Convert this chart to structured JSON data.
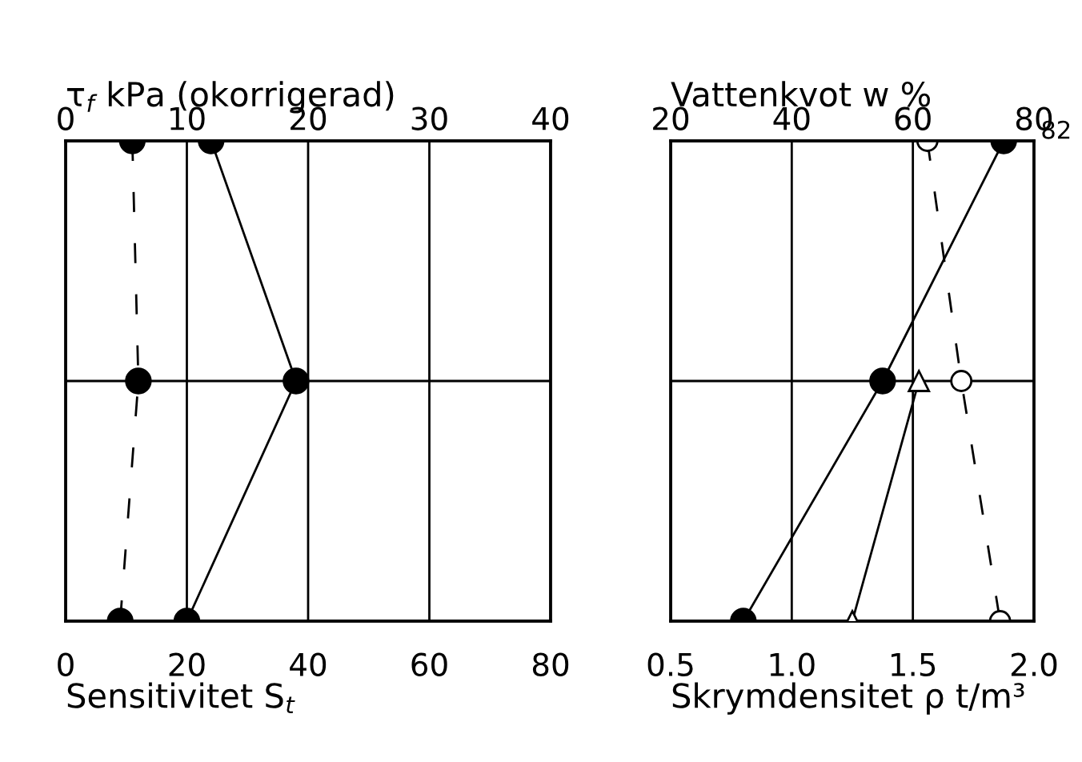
{
  "chart_data": [
    {
      "type": "line",
      "orientation": "horizontal",
      "categories": [
        null,
        null,
        null
      ],
      "x2label": "τ$_{f}$ kPa (okorrigerad)",
      "xlabel": "Sensitivitet S$_{t}$",
      "xlim": [
        0,
        80
      ],
      "xticks": [
        0,
        20,
        40,
        60,
        80
      ],
      "x2lim": [
        0,
        40
      ],
      "x2ticks": [
        0,
        10,
        20,
        30,
        40
      ],
      "grid": true,
      "tick_labels": "x",
      "series": [
        {
          "color": "#000000",
          "values": [
            12.0,
            19.0,
            10.0
          ],
          "axis": "x2",
          "marker": "circle",
          "line_style": "solid"
        },
        {
          "color": "#000000",
          "values": [
            11,
            12,
            9
          ],
          "marker": "circle",
          "line_style": "dashed"
        }
      ]
    },
    {
      "type": "line",
      "orientation": "horizontal",
      "categories": [
        null,
        null,
        null
      ],
      "x2label": "Vattenkvot w %",
      "xlabel": "Skrymdensitet ρ t/m³",
      "xlim": [
        0.5,
        2.0
      ],
      "xticks": [
        {
          "value": 0.5,
          "label": "0.5"
        },
        {
          "value": 1.0,
          "label": "1.0"
        },
        {
          "value": 1.5,
          "label": "1.5"
        },
        {
          "value": 2.0,
          "label": "2.0"
        }
      ],
      "x2lim": [
        20,
        80
      ],
      "x2ticks": [
        20,
        40,
        60,
        80
      ],
      "grid": true,
      "tick_labels": "x",
      "series": [
        {
          "color": "#000000",
          "values": [
            75,
            55,
            32
          ],
          "axis": "x2",
          "marker": "circle",
          "line_style": "solid"
        },
        {
          "color": "#ffffff",
          "values": [
            null,
            61,
            50
          ],
          "axis": "x2",
          "marker": "triangle",
          "line_style": "solid",
          "value_labels": [
            "82",
            null,
            null
          ]
        },
        {
          "color": "#ffffff",
          "values": [
            1.56,
            1.7,
            1.86
          ],
          "marker": "circle",
          "line_style": "dashed"
        }
      ]
    }
  ]
}
